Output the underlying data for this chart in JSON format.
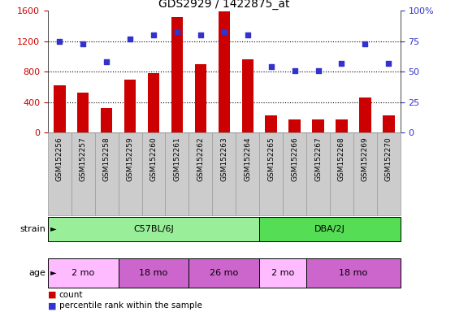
{
  "title": "GDS2929 / 1422875_at",
  "samples": [
    "GSM152256",
    "GSM152257",
    "GSM152258",
    "GSM152259",
    "GSM152260",
    "GSM152261",
    "GSM152262",
    "GSM152263",
    "GSM152264",
    "GSM152265",
    "GSM152266",
    "GSM152267",
    "GSM152268",
    "GSM152269",
    "GSM152270"
  ],
  "counts": [
    620,
    530,
    320,
    700,
    780,
    1520,
    900,
    1590,
    960,
    230,
    175,
    170,
    175,
    460,
    230
  ],
  "percentiles": [
    75,
    73,
    58,
    77,
    80,
    83,
    80,
    83,
    80,
    54,
    51,
    51,
    57,
    73,
    57
  ],
  "ylim_left": [
    0,
    1600
  ],
  "ylim_right": [
    0,
    100
  ],
  "yticks_left": [
    0,
    400,
    800,
    1200,
    1600
  ],
  "yticks_right": [
    0,
    25,
    50,
    75,
    100
  ],
  "bar_color": "#cc0000",
  "dot_color": "#3333cc",
  "strain_groups": [
    {
      "label": "C57BL/6J",
      "start": 0,
      "end": 8,
      "color": "#99ee99"
    },
    {
      "label": "DBA/2J",
      "start": 9,
      "end": 14,
      "color": "#55dd55"
    }
  ],
  "age_groups": [
    {
      "label": "2 mo",
      "start": 0,
      "end": 2,
      "color": "#ffbbff"
    },
    {
      "label": "18 mo",
      "start": 3,
      "end": 5,
      "color": "#cc66cc"
    },
    {
      "label": "26 mo",
      "start": 6,
      "end": 8,
      "color": "#cc66cc"
    },
    {
      "label": "2 mo",
      "start": 9,
      "end": 10,
      "color": "#ffbbff"
    },
    {
      "label": "18 mo",
      "start": 11,
      "end": 14,
      "color": "#cc66cc"
    }
  ],
  "strain_label": "strain",
  "age_label": "age",
  "legend_count_label": "count",
  "legend_pct_label": "percentile rank within the sample",
  "tick_bg_color": "#cccccc",
  "tick_border_color": "#999999",
  "background_color": "#ffffff",
  "bar_width": 0.5
}
